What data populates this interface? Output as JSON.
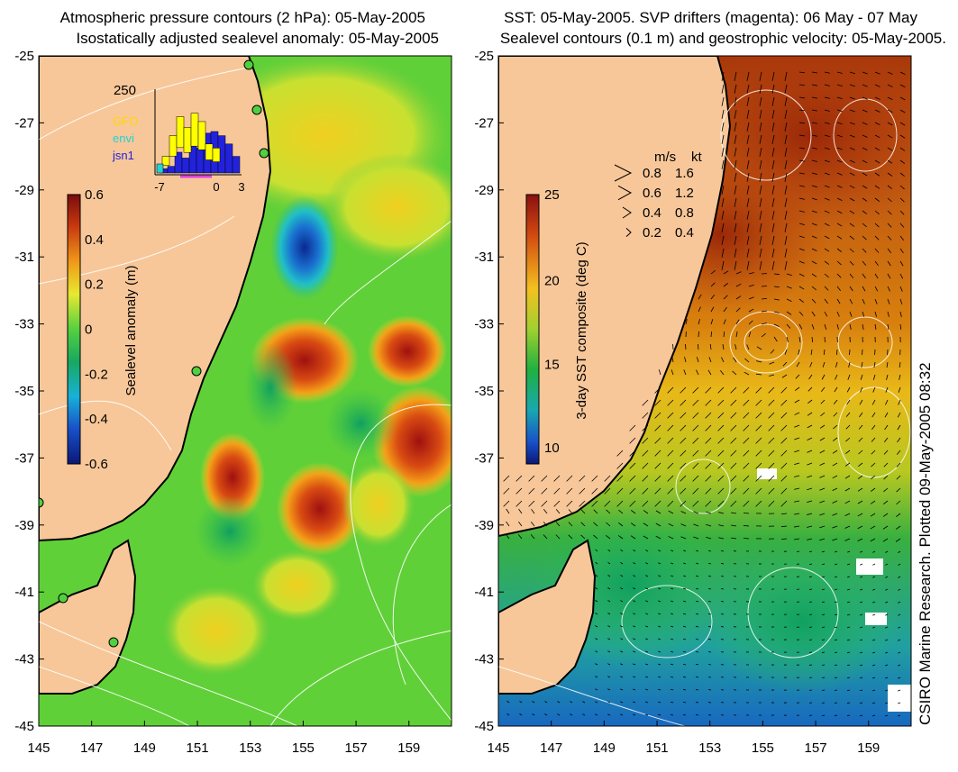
{
  "left_panel": {
    "title_line1": "Atmospheric pressure contours (2 hPa): 05-May-2005",
    "title_line2": "Isostatically adjusted sealevel anomaly: 05-May-2005",
    "colorbar": {
      "label": "Sealevel anomaly (m)",
      "ticks": [
        "0.6",
        "0.4",
        "0.2",
        "0",
        "-0.2",
        "-0.4",
        "-0.6"
      ]
    },
    "inset": {
      "ymax_label": "250",
      "x_ticks": [
        "-7",
        "0",
        "3"
      ],
      "legend": [
        {
          "name": "GFO",
          "color": "#ffd700"
        },
        {
          "name": "envi",
          "color": "#22d3d3"
        },
        {
          "name": "jsn1",
          "color": "#2222dd"
        }
      ],
      "bars_yellow": [
        0.2,
        0.45,
        0.68,
        0.55,
        0.72,
        0.62,
        0.35,
        0.3
      ],
      "bars_blue": [
        0.05,
        0.08,
        0.25,
        0.18,
        0.35,
        0.3,
        0.48,
        0.5,
        0.45,
        0.35,
        0.2
      ]
    }
  },
  "right_panel": {
    "title_line1": "SST: 05-May-2005. SVP drifters (magenta): 06 May - 07 May",
    "title_line2": "Sealevel contours (0.1 m) and geostrophic velocity: 05-May-2005.",
    "colorbar": {
      "label": "3-day SST composite (deg C)",
      "ticks": [
        "25",
        "20",
        "15",
        "10"
      ]
    },
    "speed_legend": {
      "header_ms": "m/s",
      "header_kt": "kt",
      "rows": [
        {
          "ms": "0.8",
          "kt": "1.6"
        },
        {
          "ms": "0.6",
          "kt": "1.2"
        },
        {
          "ms": "0.4",
          "kt": "0.8"
        },
        {
          "ms": "0.2",
          "kt": "0.4"
        }
      ]
    }
  },
  "y_ticks": [
    "-25",
    "-27",
    "-29",
    "-31",
    "-33",
    "-35",
    "-37",
    "-39",
    "-41",
    "-43",
    "-45"
  ],
  "x_ticks": [
    "145",
    "147",
    "149",
    "151",
    "153",
    "155",
    "157",
    "159"
  ],
  "side_credit": "CSIRO Marine Research. Plotted 09-May-2005 08:32",
  "colors": {
    "land": "#f7c799",
    "coast": "#000000",
    "contour": "#ffffff"
  }
}
